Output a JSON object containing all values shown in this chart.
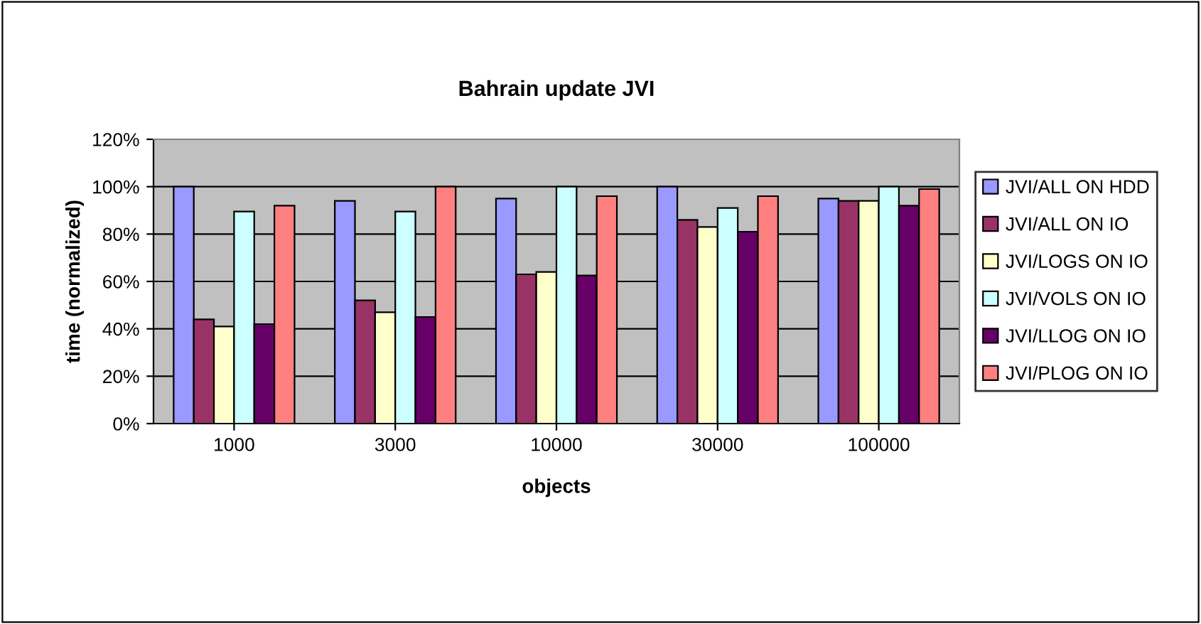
{
  "chart_data": {
    "type": "bar",
    "title": "Bahrain update JVI",
    "xlabel": "objects",
    "ylabel": "time (normalized)",
    "categories": [
      "1000",
      "3000",
      "10000",
      "30000",
      "100000"
    ],
    "series": [
      {
        "name": "JVI/ALL ON HDD",
        "color": "#9999ff",
        "values": [
          100,
          94,
          95,
          100,
          95
        ]
      },
      {
        "name": "JVI/ALL ON IO",
        "color": "#993366",
        "values": [
          44,
          52,
          63,
          86,
          94
        ]
      },
      {
        "name": "JVI/LOGS ON IO",
        "color": "#ffffcc",
        "values": [
          41,
          47,
          64,
          83,
          94
        ]
      },
      {
        "name": "JVI/VOLS ON IO",
        "color": "#ccffff",
        "values": [
          89.5,
          89.5,
          100,
          91,
          100
        ]
      },
      {
        "name": "JVI/LLOG ON IO",
        "color": "#660066",
        "values": [
          42,
          45,
          62.5,
          81,
          92
        ]
      },
      {
        "name": "JVI/PLOG ON IO",
        "color": "#ff8080",
        "values": [
          92,
          100,
          96,
          96,
          99
        ]
      }
    ],
    "ylim": [
      0,
      120
    ],
    "yticks": [
      {
        "value": 0,
        "label": "0%"
      },
      {
        "value": 20,
        "label": "20%"
      },
      {
        "value": 40,
        "label": "40%"
      },
      {
        "value": 60,
        "label": "60%"
      },
      {
        "value": 80,
        "label": "80%"
      },
      {
        "value": 100,
        "label": "100%"
      },
      {
        "value": 120,
        "label": "120%"
      }
    ],
    "grid": "y",
    "legend": "right"
  }
}
